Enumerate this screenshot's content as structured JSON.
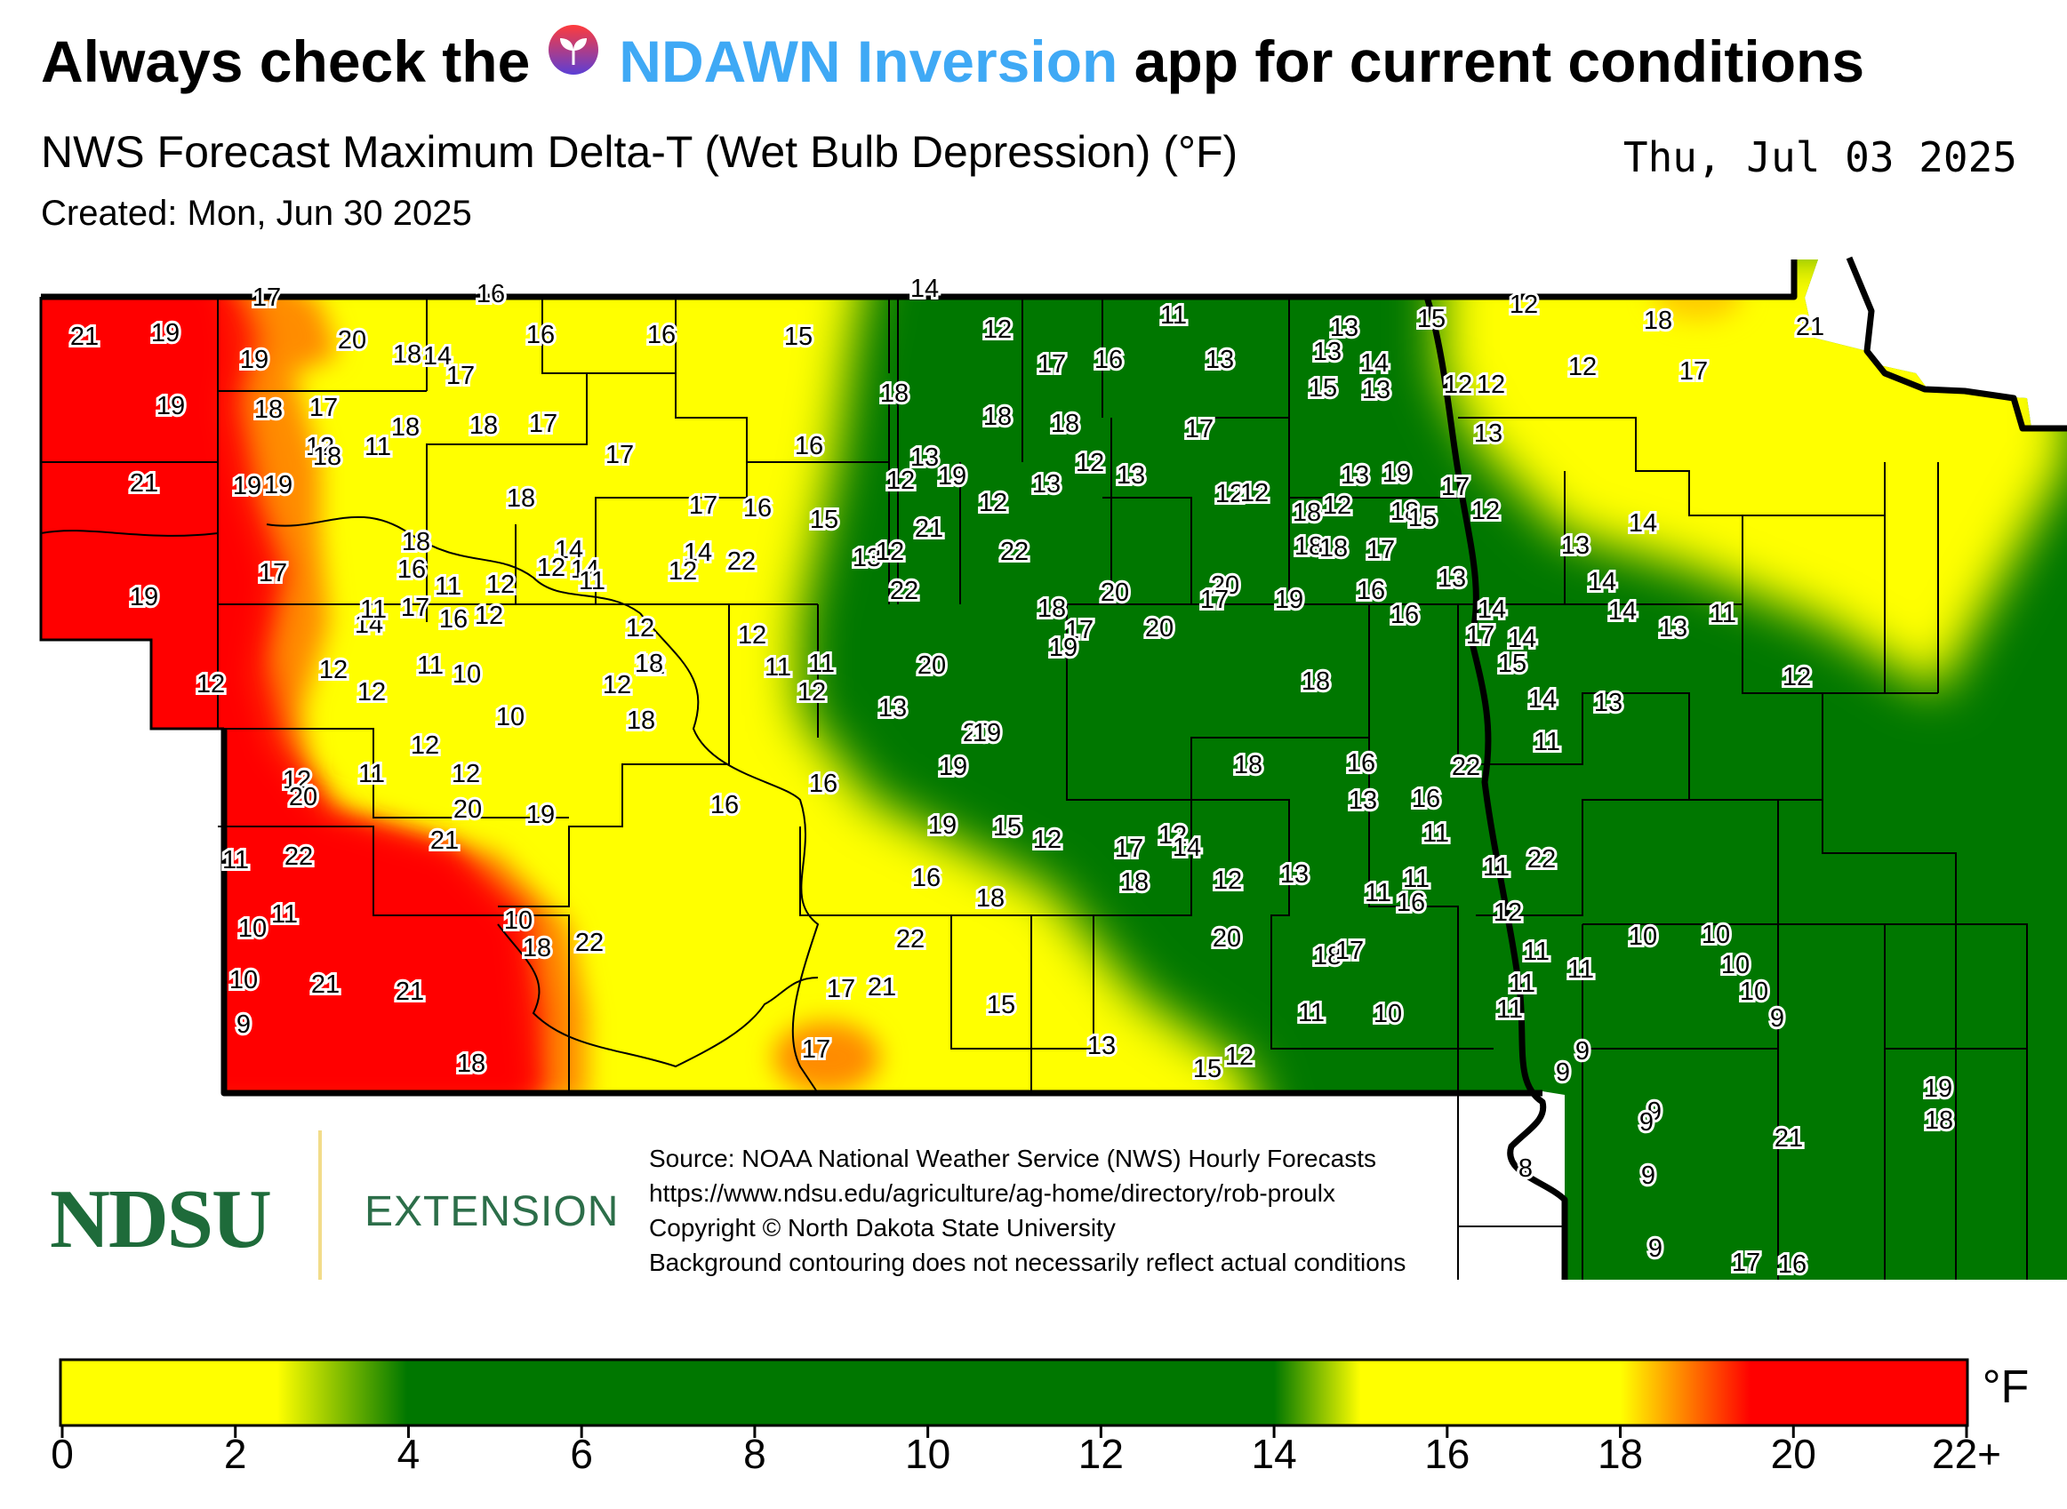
{
  "header": {
    "headline_before": "Always check the",
    "app_name": "NDAWN Inversion",
    "headline_after": "app for current conditions",
    "app_icon": "seedling-drop-icon",
    "app_color": "#3fa9f5"
  },
  "subtitle": "NWS Forecast Maximum Delta-T (Wet Bulb Depression) (°F)",
  "valid_date": "Thu, Jul 03 2025",
  "created": "Created: Mon, Jun 30 2025",
  "logo": {
    "ndsu": "NDSU",
    "extension": "EXTENSION"
  },
  "source_lines": [
    "Source: NOAA National Weather Service (NWS) Hourly Forecasts",
    "https://www.ndsu.edu/agriculture/ag-home/directory/rob-proulx",
    "Copyright © North Dakota State University",
    "Background contouring does not necessarily reflect actual conditions"
  ],
  "colorbar": {
    "unit": "°F",
    "ticks": [
      "0",
      "2",
      "4",
      "6",
      "8",
      "10",
      "12",
      "14",
      "16",
      "18",
      "20",
      "22+"
    ],
    "stops": [
      {
        "v": 0,
        "color": "#ffff00"
      },
      {
        "v": 2.5,
        "color": "#ffff00"
      },
      {
        "v": 4,
        "color": "#007700"
      },
      {
        "v": 14,
        "color": "#007700"
      },
      {
        "v": 15,
        "color": "#ffff00"
      },
      {
        "v": 18,
        "color": "#ffff00"
      },
      {
        "v": 19.5,
        "color": "#ff0000"
      },
      {
        "v": 22,
        "color": "#ff0000"
      }
    ]
  },
  "station_values": [
    21,
    19,
    17,
    16,
    14,
    19,
    20,
    18,
    16,
    16,
    15,
    12,
    11,
    13,
    15,
    18,
    17,
    21,
    19,
    18,
    17,
    17,
    17,
    16,
    13,
    12,
    12,
    12,
    11,
    14,
    16,
    18,
    18,
    18,
    17,
    15,
    13,
    12,
    13,
    12,
    13,
    14,
    13,
    21,
    19,
    19,
    18,
    18,
    18,
    17,
    17,
    12,
    13,
    13,
    12,
    12,
    13,
    19,
    17,
    17,
    16,
    15,
    12,
    14,
    14,
    18,
    18,
    16,
    12,
    12,
    12,
    22,
    20,
    18,
    18,
    19,
    17,
    17,
    14,
    16,
    12,
    12,
    14,
    14,
    22,
    22,
    20,
    20,
    19,
    18,
    17,
    16,
    14,
    13,
    11,
    11,
    12,
    12,
    12,
    13,
    12,
    21,
    19,
    18,
    17,
    18,
    16,
    15,
    13,
    12,
    12,
    11,
    10,
    11,
    12,
    12,
    11,
    11,
    12,
    13,
    20,
    20,
    19,
    19,
    17,
    18,
    17,
    14,
    14,
    14,
    11,
    11,
    11,
    12,
    12,
    12,
    10,
    12,
    18,
    19,
    18,
    16,
    16,
    15,
    14,
    13,
    13,
    12,
    12,
    20,
    22,
    20,
    19,
    18,
    16,
    16,
    16,
    15,
    12,
    12,
    13,
    13,
    11,
    11,
    22,
    22,
    21,
    19,
    18,
    17,
    18,
    14,
    12,
    11,
    11,
    11,
    10,
    10,
    11,
    10,
    22,
    22,
    21,
    20,
    18,
    17,
    16,
    12,
    11,
    11,
    11,
    10,
    10,
    10,
    9,
    21,
    21,
    18,
    17,
    15,
    13,
    15,
    12,
    11,
    10,
    11,
    9,
    9,
    9,
    10,
    9,
    9,
    9,
    8,
    9,
    21,
    19,
    17,
    16,
    18,
    18,
    17
  ]
}
